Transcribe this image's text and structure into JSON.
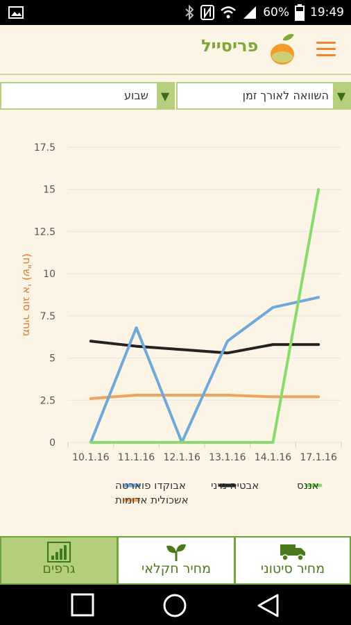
{
  "status_bar": {
    "battery": "60%",
    "time": "19:49",
    "icons": [
      "image-icon",
      "bluetooth-icon",
      "nfc-icon",
      "wifi-icon",
      "signal-icon",
      "battery-icon"
    ]
  },
  "app": {
    "brand": "פריסייל",
    "colors": {
      "accent": "#f0852d",
      "green": "#7ea93a",
      "bg": "#fcf4e4"
    }
  },
  "filters": {
    "comparison": "השוואה לאורך זמן",
    "period": "שבוע"
  },
  "chart_data": {
    "type": "line",
    "x": [
      "10.1.16",
      "11.1.16",
      "12.1.16",
      "13.1.16",
      "14.1.16",
      "17.1.16"
    ],
    "ylabel": "מחיר סוג א' (ש\"ח)",
    "ylim": [
      0,
      17.5
    ],
    "yticks": [
      0,
      2.5,
      5,
      7.5,
      10,
      12.5,
      15,
      17.5
    ],
    "ytick_labels": [
      "0",
      "2.5",
      "5",
      "7.5",
      "10",
      "12.5",
      "15",
      "17.5"
    ],
    "grid": true,
    "series": [
      {
        "name": "אבוקדו פוארטה",
        "color": "#6fa8dc",
        "values": [
          0,
          6.8,
          0,
          6.0,
          8.0,
          8.6
        ]
      },
      {
        "name": "אבטיח מיני",
        "color": "#222222",
        "values": [
          6.0,
          5.7,
          5.5,
          5.3,
          5.8,
          5.8
        ]
      },
      {
        "name": "אננס",
        "color": "#86dc6a",
        "values": [
          0,
          0,
          0,
          0,
          0,
          15.0
        ]
      },
      {
        "name": "אשכולית אדומות",
        "color": "#f0a35e",
        "values": [
          2.6,
          2.8,
          2.8,
          2.8,
          2.7,
          2.7
        ]
      }
    ],
    "legend_position": "bottom"
  },
  "bottom_tabs": [
    {
      "label": "גרפים",
      "icon": "bar-chart-icon",
      "active": true
    },
    {
      "label": "מחיר חקלאי",
      "icon": "plant-icon",
      "active": false
    },
    {
      "label": "מחיר סיטוני",
      "icon": "truck-icon",
      "active": false
    }
  ]
}
